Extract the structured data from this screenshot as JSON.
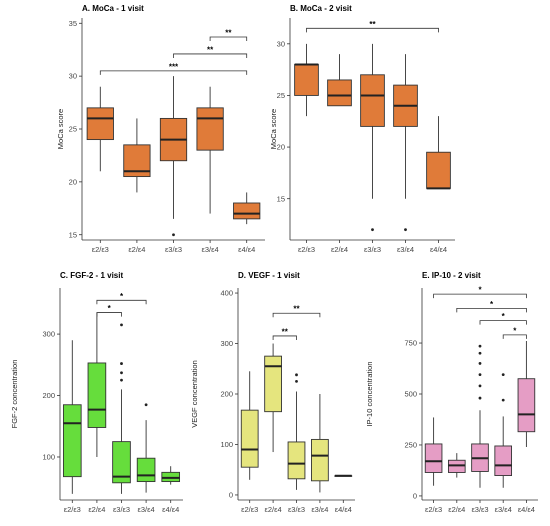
{
  "chart_data": [
    {
      "type": "box",
      "title": "A. MoCa - 1 visit",
      "ylabel": "MoCa score",
      "xlabel": "",
      "color": "#E07B39",
      "ylim": [
        14.5,
        35.5
      ],
      "yticks": [
        15,
        20,
        25,
        30,
        35
      ],
      "categories": [
        "ε2/ε3",
        "ε2/ε4",
        "ε3/ε3",
        "ε3/ε4",
        "ε4/ε4"
      ],
      "boxes": [
        {
          "min": 21,
          "q1": 24,
          "median": 26,
          "q3": 27,
          "max": 29,
          "outliers": []
        },
        {
          "min": 19,
          "q1": 20.5,
          "median": 21,
          "q3": 23.5,
          "max": 26,
          "outliers": []
        },
        {
          "min": 16.5,
          "q1": 22,
          "median": 24,
          "q3": 26,
          "max": 30,
          "outliers": [
            15
          ]
        },
        {
          "min": 17,
          "q1": 23,
          "median": 26,
          "q3": 27,
          "max": 29,
          "outliers": []
        },
        {
          "min": 16,
          "q1": 16.5,
          "median": 17,
          "q3": 18,
          "max": 19,
          "outliers": []
        }
      ],
      "significance": [
        {
          "from": 3,
          "to": 4,
          "label": "**",
          "y": 33.7
        },
        {
          "from": 2,
          "to": 4,
          "label": "**",
          "y": 32.1
        },
        {
          "from": 0,
          "to": 4,
          "label": "***",
          "y": 30.5
        }
      ]
    },
    {
      "type": "box",
      "title": "B. MoCa - 2 visit",
      "ylabel": "MoCa score",
      "xlabel": "",
      "color": "#E07B39",
      "ylim": [
        11,
        32.5
      ],
      "yticks": [
        15,
        20,
        25,
        30
      ],
      "categories": [
        "ε2/ε3",
        "ε2/ε4",
        "ε3/ε3",
        "ε3/ε4",
        "ε4/ε4"
      ],
      "boxes": [
        {
          "min": 23,
          "q1": 25,
          "median": 28,
          "q3": 28,
          "max": 30,
          "outliers": []
        },
        {
          "min": 24,
          "q1": 24,
          "median": 25,
          "q3": 26.5,
          "max": 29,
          "outliers": []
        },
        {
          "min": 15,
          "q1": 22,
          "median": 25,
          "q3": 27,
          "max": 30,
          "outliers": [
            12
          ]
        },
        {
          "min": 15,
          "q1": 22,
          "median": 24,
          "q3": 26,
          "max": 29,
          "outliers": [
            12
          ]
        },
        {
          "min": 16,
          "q1": 16,
          "median": 16,
          "q3": 19.5,
          "max": 23,
          "outliers": []
        }
      ],
      "significance": [
        {
          "from": 0,
          "to": 4,
          "label": "**",
          "y": 31.5
        }
      ]
    },
    {
      "type": "box",
      "title": "C. FGF-2 - 1 visit",
      "ylabel": "FGF-2 concentration",
      "xlabel": "",
      "color": "#66DD3C",
      "ylim": [
        30,
        375
      ],
      "yticks": [
        100,
        200,
        300
      ],
      "categories": [
        "ε2/ε3",
        "ε2/ε4",
        "ε3/ε3",
        "ε3/ε4",
        "ε4/ε4"
      ],
      "boxes": [
        {
          "min": 40,
          "q1": 68,
          "median": 155,
          "q3": 185,
          "max": 290,
          "outliers": []
        },
        {
          "min": 100,
          "q1": 148,
          "median": 177,
          "q3": 253,
          "max": 335,
          "outliers": []
        },
        {
          "min": 40,
          "q1": 58,
          "median": 68,
          "q3": 125,
          "max": 210,
          "outliers": [
            225,
            237,
            252,
            315
          ]
        },
        {
          "min": 42,
          "q1": 60,
          "median": 70,
          "q3": 98,
          "max": 160,
          "outliers": [
            185
          ]
        },
        {
          "min": 55,
          "q1": 60,
          "median": 66,
          "q3": 75,
          "max": 85,
          "outliers": []
        }
      ],
      "significance": [
        {
          "from": 1,
          "to": 2,
          "label": "*",
          "y": 335
        },
        {
          "from": 1,
          "to": 3,
          "label": "*",
          "y": 355
        }
      ]
    },
    {
      "type": "box",
      "title": "D. VEGF - 1 visit",
      "ylabel": "VEGF concentration",
      "xlabel": "",
      "color": "#E5E57E",
      "ylim": [
        -10,
        410
      ],
      "yticks": [
        0,
        100,
        200,
        300,
        400
      ],
      "categories": [
        "ε2/ε3",
        "ε2/ε4",
        "ε3/ε3",
        "ε3/ε4",
        "ε4/ε4"
      ],
      "boxes": [
        {
          "min": 30,
          "q1": 55,
          "median": 90,
          "q3": 168,
          "max": 245,
          "outliers": []
        },
        {
          "min": 85,
          "q1": 165,
          "median": 255,
          "q3": 275,
          "max": 300,
          "outliers": []
        },
        {
          "min": 10,
          "q1": 32,
          "median": 62,
          "q3": 105,
          "max": 205,
          "outliers": [
            225,
            238
          ]
        },
        {
          "min": 5,
          "q1": 28,
          "median": 78,
          "q3": 110,
          "max": 200,
          "outliers": []
        },
        {
          "min": 38,
          "q1": 38,
          "median": 38,
          "q3": 38,
          "max": 38,
          "outliers": []
        }
      ],
      "significance": [
        {
          "from": 1,
          "to": 2,
          "label": "**",
          "y": 315
        },
        {
          "from": 1,
          "to": 3,
          "label": "**",
          "y": 360
        }
      ]
    },
    {
      "type": "box",
      "title": "E. IP-10 - 2 visit",
      "ylabel": "IP-10 concentration",
      "xlabel": "",
      "color": "#E59DC5",
      "ylim": [
        -20,
        1020
      ],
      "yticks": [
        0,
        250,
        500,
        750
      ],
      "categories": [
        "ε2/ε3",
        "ε2/ε4",
        "ε3/ε3",
        "ε3/ε4",
        "ε4/ε4"
      ],
      "boxes": [
        {
          "min": 50,
          "q1": 115,
          "median": 170,
          "q3": 255,
          "max": 385,
          "outliers": []
        },
        {
          "min": 90,
          "q1": 115,
          "median": 150,
          "q3": 175,
          "max": 210,
          "outliers": []
        },
        {
          "min": 40,
          "q1": 120,
          "median": 185,
          "q3": 255,
          "max": 420,
          "outliers": [
            480,
            540,
            595,
            650,
            700,
            735
          ]
        },
        {
          "min": 40,
          "q1": 100,
          "median": 150,
          "q3": 245,
          "max": 390,
          "outliers": [
            470,
            595
          ]
        },
        {
          "min": 240,
          "q1": 315,
          "median": 400,
          "q3": 575,
          "max": 760,
          "outliers": []
        }
      ],
      "significance": [
        {
          "from": 0,
          "to": 4,
          "label": "*",
          "y": 990
        },
        {
          "from": 1,
          "to": 4,
          "label": "*",
          "y": 920
        },
        {
          "from": 2,
          "to": 4,
          "label": "*",
          "y": 860
        },
        {
          "from": 3,
          "to": 4,
          "label": "*",
          "y": 790
        }
      ]
    }
  ]
}
